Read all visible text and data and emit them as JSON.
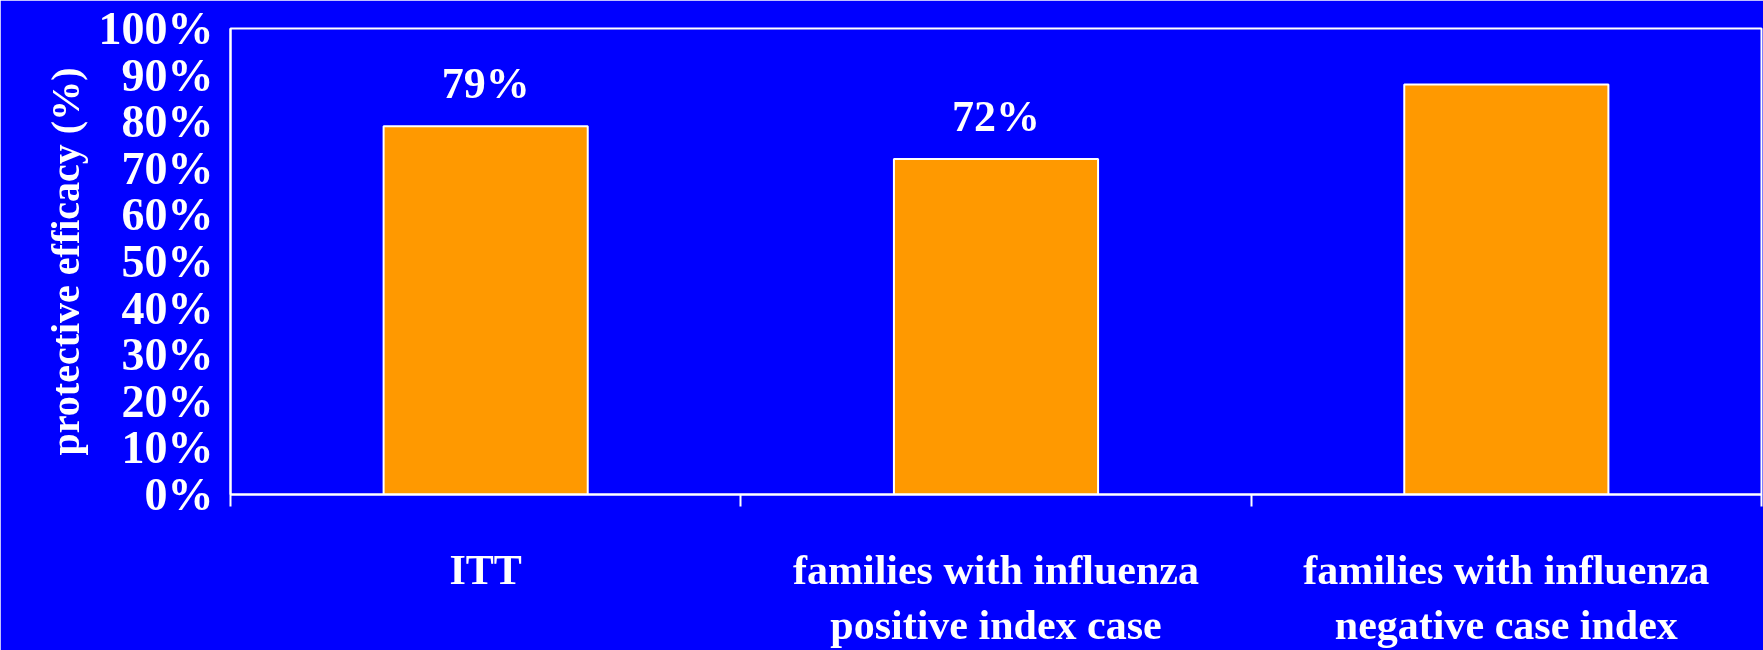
{
  "chart_data": {
    "type": "bar",
    "ylabel": "protective efficacy (%)",
    "categories": [
      "ITT",
      "families with influenza\npositive index case",
      "families with influenza\nnegative case index"
    ],
    "values": [
      79,
      72,
      88
    ],
    "value_labels": [
      "79%",
      "72%",
      null
    ],
    "color": "#ff9900",
    "ylim": [
      0,
      100
    ],
    "yticks": [
      {
        "value": 0,
        "label": "0%"
      },
      {
        "value": 10,
        "label": "10%"
      },
      {
        "value": 20,
        "label": "20%"
      },
      {
        "value": 30,
        "label": "30%"
      },
      {
        "value": 40,
        "label": "40%"
      },
      {
        "value": 50,
        "label": "50%"
      },
      {
        "value": 60,
        "label": "60%"
      },
      {
        "value": 70,
        "label": "70%"
      },
      {
        "value": 80,
        "label": "80%"
      },
      {
        "value": 90,
        "label": "90%"
      },
      {
        "value": 100,
        "label": "100%"
      }
    ],
    "grid": false
  }
}
